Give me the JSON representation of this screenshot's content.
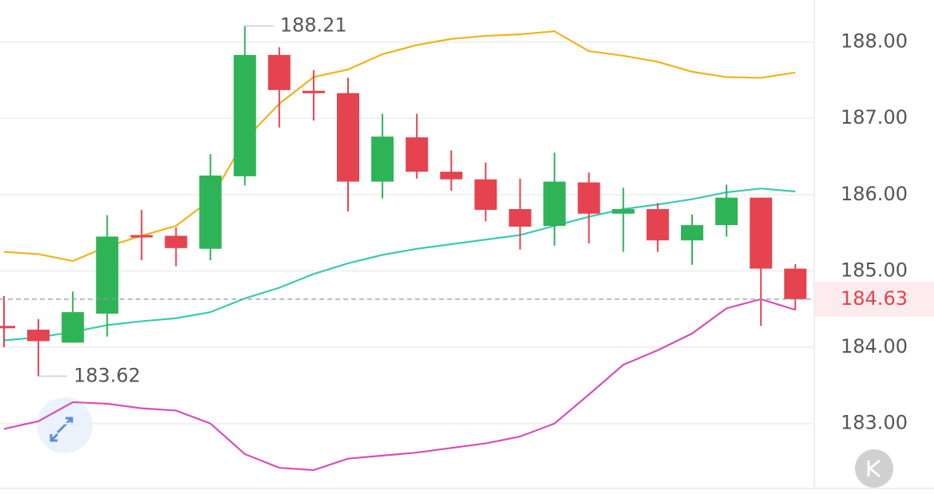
{
  "chart_data": {
    "type": "candlestick",
    "open": [
      184.28,
      184.23,
      184.06,
      184.44,
      185.47,
      185.46,
      185.29,
      186.24,
      187.83,
      187.36,
      187.33,
      186.17,
      186.75,
      186.3,
      186.2,
      185.81,
      185.59,
      186.16,
      185.75,
      185.81,
      185.4,
      185.6,
      185.96,
      185.03
    ],
    "high": [
      184.67,
      184.37,
      184.73,
      185.73,
      185.8,
      185.57,
      186.53,
      188.21,
      187.93,
      187.63,
      187.53,
      187.06,
      187.06,
      186.58,
      186.42,
      186.21,
      186.55,
      186.29,
      186.09,
      185.89,
      185.74,
      186.13,
      185.96,
      185.09
    ],
    "low": [
      184.0,
      183.62,
      184.06,
      184.14,
      185.14,
      185.06,
      185.14,
      186.12,
      186.88,
      186.97,
      185.78,
      185.95,
      186.21,
      186.05,
      185.65,
      185.28,
      185.33,
      185.36,
      185.25,
      185.25,
      185.08,
      185.45,
      184.28,
      184.49
    ],
    "close": [
      184.25,
      184.08,
      184.46,
      185.45,
      185.45,
      185.3,
      186.25,
      187.83,
      187.37,
      187.33,
      186.17,
      186.76,
      186.3,
      186.2,
      185.8,
      185.58,
      186.17,
      185.75,
      185.81,
      185.4,
      185.6,
      185.96,
      185.03,
      184.63
    ],
    "up_color": "#2eb457",
    "down_color": "#e5434f",
    "bands": [
      {
        "color": "#efb31b",
        "values": [
          185.25,
          185.22,
          185.13,
          185.32,
          185.46,
          185.59,
          185.93,
          186.72,
          187.19,
          187.54,
          187.64,
          187.84,
          187.96,
          188.04,
          188.08,
          188.1,
          188.14,
          187.88,
          187.82,
          187.74,
          187.61,
          187.54,
          187.53,
          187.6
        ]
      },
      {
        "color": "#3ccab0",
        "values": [
          184.09,
          184.13,
          184.2,
          184.29,
          184.34,
          184.38,
          184.46,
          184.64,
          184.78,
          184.96,
          185.1,
          185.21,
          185.29,
          185.35,
          185.41,
          185.47,
          185.59,
          185.71,
          185.81,
          185.87,
          185.94,
          186.03,
          186.08,
          186.04
        ]
      },
      {
        "color": "#d64fb9",
        "values": [
          182.93,
          183.03,
          183.28,
          183.26,
          183.2,
          183.17,
          183.0,
          182.6,
          182.42,
          182.39,
          182.54,
          182.58,
          182.62,
          182.68,
          182.74,
          182.83,
          183.0,
          183.38,
          183.77,
          183.96,
          184.18,
          184.51,
          184.63,
          184.49
        ]
      }
    ],
    "ylim": [
      182.15,
      188.55
    ],
    "yticks": [
      {
        "value": 188,
        "label": "188.00"
      },
      {
        "value": 187,
        "label": "187.00"
      },
      {
        "value": 186,
        "label": "186.00"
      },
      {
        "value": 185,
        "label": "185.00"
      },
      {
        "value": 184,
        "label": "184.00"
      },
      {
        "value": 183,
        "label": "183.00"
      }
    ],
    "grid": true
  }
}
